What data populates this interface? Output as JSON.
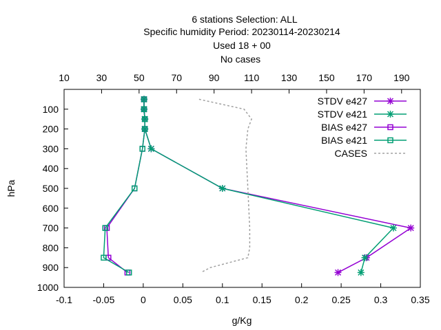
{
  "chart_data": {
    "type": "line",
    "title_lines": [
      "6 stations Selection: ALL",
      "Specific humidity  Period: 20230114-20230214",
      "Used  18  + 00",
      "No cases"
    ],
    "xlabel": "g/Kg",
    "ylabel": "hPa",
    "x_axis": {
      "range": [
        -0.1,
        0.35
      ],
      "ticks": [
        -0.1,
        -0.05,
        0,
        0.05,
        0.1,
        0.15,
        0.2,
        0.25,
        0.3,
        0.35
      ],
      "tick_labels": [
        "-0.1",
        "-0.05",
        "0",
        "0.05",
        "0.1",
        "0.15",
        "0.2",
        "0.25",
        "0.3",
        "0.35"
      ]
    },
    "x2_axis": {
      "range": [
        10,
        200
      ],
      "ticks": [
        10,
        30,
        50,
        70,
        90,
        110,
        130,
        150,
        170,
        190
      ],
      "tick_labels": [
        "10",
        "30",
        "50",
        "70",
        "90",
        "110",
        "130",
        "150",
        "170",
        "190"
      ]
    },
    "y_axis": {
      "range": [
        1000,
        0
      ],
      "inverted": true,
      "ticks": [
        100,
        200,
        300,
        400,
        500,
        600,
        700,
        800,
        900,
        1000
      ],
      "tick_labels": [
        "100",
        "200",
        "300",
        "400",
        "500",
        "600",
        "700",
        "800",
        "900",
        "1000"
      ]
    },
    "legend_position": "top-right",
    "grid": false,
    "series": [
      {
        "name": "STDV e427",
        "color": "#9400d3",
        "marker": "star",
        "axis": "x",
        "points": [
          [
            0.001,
            50
          ],
          [
            0.001,
            100
          ],
          [
            0.002,
            150
          ],
          [
            0.002,
            200
          ],
          [
            0.01,
            300
          ],
          [
            0.1,
            500
          ],
          [
            0.338,
            700
          ],
          [
            0.282,
            850
          ],
          [
            0.246,
            925
          ]
        ]
      },
      {
        "name": "STDV e421",
        "color": "#009e73",
        "marker": "star",
        "axis": "x",
        "points": [
          [
            0.001,
            50
          ],
          [
            0.001,
            100
          ],
          [
            0.002,
            150
          ],
          [
            0.002,
            200
          ],
          [
            0.01,
            300
          ],
          [
            0.1,
            500
          ],
          [
            0.316,
            700
          ],
          [
            0.28,
            850
          ],
          [
            0.275,
            925
          ]
        ]
      },
      {
        "name": "BIAS e427",
        "color": "#9400d3",
        "marker": "square",
        "axis": "x",
        "points": [
          [
            0.001,
            50
          ],
          [
            0.001,
            100
          ],
          [
            0.002,
            150
          ],
          [
            0.002,
            200
          ],
          [
            -0.001,
            300
          ],
          [
            -0.011,
            500
          ],
          [
            -0.046,
            700
          ],
          [
            -0.044,
            850
          ],
          [
            -0.02,
            925
          ]
        ]
      },
      {
        "name": "BIAS e421",
        "color": "#009e73",
        "marker": "square",
        "axis": "x",
        "points": [
          [
            0.001,
            50
          ],
          [
            0.001,
            100
          ],
          [
            0.002,
            150
          ],
          [
            0.002,
            200
          ],
          [
            -0.001,
            300
          ],
          [
            -0.011,
            500
          ],
          [
            -0.048,
            700
          ],
          [
            -0.05,
            850
          ],
          [
            -0.018,
            925
          ]
        ]
      },
      {
        "name": "CASES",
        "color": "#a0a0a0",
        "marker": "none",
        "dash": true,
        "axis": "x2",
        "points": [
          [
            82,
            50
          ],
          [
            106,
            100
          ],
          [
            110,
            150
          ],
          [
            108,
            200
          ],
          [
            107,
            300
          ],
          [
            108,
            500
          ],
          [
            109,
            700
          ],
          [
            109,
            800
          ],
          [
            108,
            850
          ],
          [
            88,
            900
          ],
          [
            83,
            925
          ]
        ]
      }
    ]
  }
}
